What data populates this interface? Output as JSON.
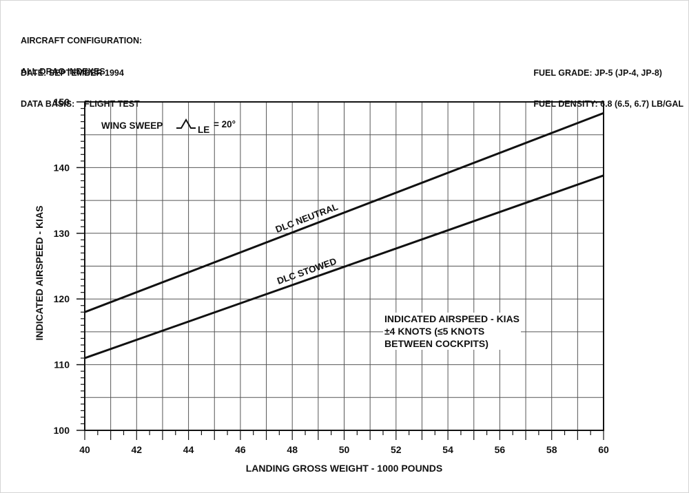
{
  "header": {
    "config_line1": "AIRCRAFT CONFIGURATION:",
    "config_line2": "ALL DRAG INDEXES",
    "date": "DATE: SEPTEMBER 1994",
    "data_basis": "DATA BASIS:    FLIGHT TEST",
    "fuel_grade": "FUEL GRADE: JP-5 (JP-4, JP-8)",
    "fuel_density": "FUEL DENSITY: 6.8 (6.5, 6.7) LB/GAL"
  },
  "annotations": {
    "wing_sweep_prefix": "WING SWEEP",
    "wing_sweep_symbol": "Λ",
    "wing_sweep_subscript": "LE",
    "wing_sweep_value": "= 20°",
    "note_line1": "INDICATED AIRSPEED - KIAS",
    "note_line2": "±4 KNOTS (≤5 KNOTS",
    "note_line3": "BETWEEN COCKPITS)"
  },
  "chart_data": {
    "type": "line",
    "title": "",
    "xlabel": "LANDING GROSS WEIGHT - 1000 POUNDS",
    "ylabel": "INDICATED AIRSPEED - KIAS",
    "xlim": [
      40,
      60
    ],
    "ylim": [
      100,
      150
    ],
    "x_ticks": [
      40,
      42,
      44,
      46,
      48,
      50,
      52,
      54,
      56,
      58,
      60
    ],
    "y_ticks": [
      100,
      110,
      120,
      130,
      140,
      150
    ],
    "grid": true,
    "x_grid_step": 1,
    "y_grid_step": 5,
    "legend_position": "inline labels on lines",
    "series": [
      {
        "name": "DLC NEUTRAL",
        "x": [
          40,
          60
        ],
        "values": [
          118.0,
          148.3
        ]
      },
      {
        "name": "DLC STOWED",
        "x": [
          40,
          60
        ],
        "values": [
          111.0,
          138.8
        ]
      }
    ],
    "annotations": [
      "WING SWEEP Λ LE = 20°",
      "INDICATED AIRSPEED - KIAS ±4 KNOTS (≤5 KNOTS BETWEEN COCKPITS)"
    ]
  }
}
